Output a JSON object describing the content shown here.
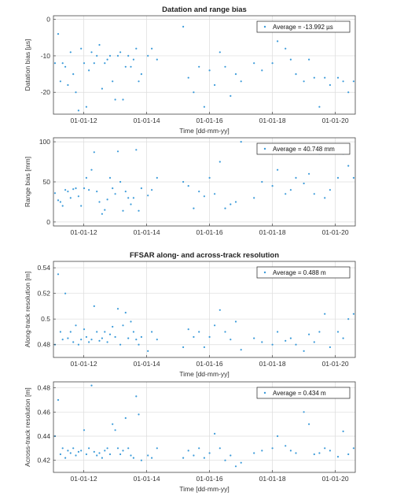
{
  "chart_data": [
    {
      "type": "scatter",
      "title": "Datation and range bias",
      "xlabel": "Time [dd-mm-yy]",
      "ylabel": "Datation bias [µs]",
      "xticks": [
        "01-01-12",
        "01-01-14",
        "01-01-16",
        "01-01-18",
        "01-01-20"
      ],
      "yticks": [
        0,
        -10,
        -20
      ],
      "xlim": [
        "2011-01-14",
        "2020-08-20"
      ],
      "ylim": [
        -26,
        1
      ],
      "grid": true,
      "legend_position": "top-right",
      "color": "#3a9ad9",
      "series": [
        {
          "name": "Average = -13.992 µs",
          "x": [
            "2011-02-01",
            "2011-03-10",
            "2011-04-05",
            "2011-05-01",
            "2011-06-01",
            "2011-07-01",
            "2011-08-01",
            "2011-09-01",
            "2011-10-01",
            "2011-11-01",
            "2011-12-01",
            "2012-01-05",
            "2012-02-01",
            "2012-03-01",
            "2012-04-01",
            "2012-05-01",
            "2012-06-01",
            "2012-07-01",
            "2012-08-01",
            "2012-09-01",
            "2012-10-01",
            "2012-11-01",
            "2012-12-01",
            "2013-01-01",
            "2013-02-01",
            "2013-03-01",
            "2013-04-01",
            "2013-05-01",
            "2013-06-01",
            "2013-07-01",
            "2013-08-01",
            "2013-09-01",
            "2013-10-01",
            "2013-11-01",
            "2014-01-15",
            "2014-03-01",
            "2014-05-01",
            "2015-03-01",
            "2015-05-01",
            "2015-07-01",
            "2015-09-01",
            "2015-11-01",
            "2016-01-01",
            "2016-03-01",
            "2016-05-01",
            "2016-07-01",
            "2016-09-01",
            "2016-11-01",
            "2017-01-01",
            "2017-06-01",
            "2017-09-01",
            "2018-01-01",
            "2018-03-01",
            "2018-06-01",
            "2018-08-01",
            "2018-10-01",
            "2019-01-01",
            "2019-03-01",
            "2019-05-01",
            "2019-07-01",
            "2019-09-01",
            "2019-11-01",
            "2020-02-01",
            "2020-04-01",
            "2020-06-01",
            "2020-08-01"
          ],
          "y": [
            -12,
            -4,
            -17,
            -12,
            -13,
            -18,
            -9,
            -15,
            -20,
            -25,
            -8,
            -12,
            -24,
            -14,
            -9,
            -12,
            -10,
            -7,
            -19,
            -12,
            -11,
            -10,
            -17,
            -22,
            -10,
            -9,
            -22,
            -13,
            -10,
            -13,
            -11,
            -8,
            -17,
            -15,
            -10,
            -8,
            -11,
            -2,
            -16,
            -20,
            -13,
            -24,
            -14,
            -18,
            -9,
            -13,
            -21,
            -15,
            -17,
            -12,
            -14,
            -12,
            -6,
            -8,
            -11,
            -15,
            -17,
            -11,
            -16,
            -24,
            -16,
            -18,
            -16,
            -17,
            -20,
            -17
          ]
        }
      ]
    },
    {
      "type": "scatter",
      "title": "",
      "xlabel": "",
      "ylabel": "Range bias [mm]",
      "xticks": [
        "01-01-12",
        "01-01-14",
        "01-01-16",
        "01-01-18",
        "01-01-20"
      ],
      "yticks": [
        100,
        50,
        0
      ],
      "xlim": [
        "2011-01-14",
        "2020-08-20"
      ],
      "ylim": [
        -5,
        105
      ],
      "grid": true,
      "legend_position": "top-right",
      "color": "#3a9ad9",
      "series": [
        {
          "name": "Average = 40.748 mm",
          "x": [
            "2011-02-01",
            "2011-03-10",
            "2011-04-05",
            "2011-05-01",
            "2011-06-01",
            "2011-07-01",
            "2011-08-01",
            "2011-09-01",
            "2011-10-01",
            "2011-11-01",
            "2011-12-01",
            "2012-01-05",
            "2012-02-01",
            "2012-03-01",
            "2012-04-01",
            "2012-05-01",
            "2012-06-01",
            "2012-07-01",
            "2012-08-01",
            "2012-09-01",
            "2012-10-01",
            "2012-11-01",
            "2012-12-01",
            "2013-01-01",
            "2013-02-01",
            "2013-03-01",
            "2013-04-01",
            "2013-05-01",
            "2013-06-01",
            "2013-07-01",
            "2013-08-01",
            "2013-09-01",
            "2013-10-01",
            "2013-11-01",
            "2014-01-15",
            "2014-03-01",
            "2014-05-01",
            "2015-03-01",
            "2015-05-01",
            "2015-07-01",
            "2015-09-01",
            "2015-11-01",
            "2016-01-01",
            "2016-03-01",
            "2016-05-01",
            "2016-07-01",
            "2016-09-01",
            "2016-11-01",
            "2017-01-01",
            "2017-06-01",
            "2017-09-01",
            "2018-01-01",
            "2018-03-01",
            "2018-06-01",
            "2018-08-01",
            "2018-10-01",
            "2019-01-01",
            "2019-03-01",
            "2019-05-01",
            "2019-07-01",
            "2019-09-01",
            "2019-11-01",
            "2020-02-01",
            "2020-04-01",
            "2020-06-01",
            "2020-08-01"
          ],
          "y": [
            36,
            27,
            25,
            20,
            40,
            38,
            30,
            41,
            42,
            32,
            20,
            42,
            55,
            40,
            65,
            87,
            38,
            25,
            10,
            15,
            28,
            55,
            42,
            35,
            88,
            50,
            14,
            38,
            30,
            22,
            30,
            90,
            14,
            42,
            33,
            40,
            55,
            50,
            45,
            17,
            38,
            32,
            55,
            35,
            75,
            17,
            22,
            25,
            100,
            30,
            50,
            45,
            65,
            35,
            40,
            55,
            48,
            60,
            35,
            85,
            30,
            40,
            55,
            85,
            70,
            55
          ]
        }
      ]
    },
    {
      "type": "scatter",
      "title": "FFSAR along- and across-track resolution",
      "xlabel": "Time [dd-mm-yy]",
      "ylabel": "Along-track resolution [m]",
      "xticks": [
        "01-01-12",
        "01-01-14",
        "01-01-16",
        "01-01-18",
        "01-01-20"
      ],
      "yticks": [
        0.54,
        0.52,
        0.5,
        0.48
      ],
      "xlim": [
        "2011-01-14",
        "2020-08-20"
      ],
      "ylim": [
        0.47,
        0.545
      ],
      "grid": true,
      "legend_position": "top-right",
      "color": "#3a9ad9",
      "series": [
        {
          "name": "Average = 0.488 m",
          "x": [
            "2011-02-01",
            "2011-03-10",
            "2011-04-05",
            "2011-05-01",
            "2011-06-01",
            "2011-07-01",
            "2011-08-01",
            "2011-09-01",
            "2011-10-01",
            "2011-11-01",
            "2011-12-01",
            "2012-01-05",
            "2012-02-01",
            "2012-03-01",
            "2012-04-01",
            "2012-05-01",
            "2012-06-01",
            "2012-07-01",
            "2012-08-01",
            "2012-09-01",
            "2012-10-01",
            "2012-11-01",
            "2012-12-01",
            "2013-01-01",
            "2013-02-01",
            "2013-03-01",
            "2013-04-01",
            "2013-05-01",
            "2013-06-01",
            "2013-07-01",
            "2013-08-01",
            "2013-09-01",
            "2013-10-01",
            "2013-11-01",
            "2014-01-15",
            "2014-03-01",
            "2014-05-01",
            "2015-03-01",
            "2015-05-01",
            "2015-07-01",
            "2015-09-01",
            "2015-11-01",
            "2016-01-01",
            "2016-03-01",
            "2016-05-01",
            "2016-07-01",
            "2016-09-01",
            "2016-11-01",
            "2017-01-01",
            "2017-06-01",
            "2017-09-01",
            "2018-01-01",
            "2018-03-01",
            "2018-06-01",
            "2018-08-01",
            "2018-10-01",
            "2019-01-01",
            "2019-03-01",
            "2019-05-01",
            "2019-07-01",
            "2019-09-01",
            "2019-11-01",
            "2020-02-01",
            "2020-04-01",
            "2020-06-01",
            "2020-08-01"
          ],
          "y": [
            0.48,
            0.535,
            0.49,
            0.484,
            0.52,
            0.485,
            0.49,
            0.482,
            0.495,
            0.48,
            0.484,
            0.492,
            0.486,
            0.482,
            0.484,
            0.51,
            0.49,
            0.483,
            0.485,
            0.49,
            0.482,
            0.488,
            0.494,
            0.486,
            0.508,
            0.48,
            0.495,
            0.505,
            0.485,
            0.498,
            0.49,
            0.484,
            0.48,
            0.486,
            0.475,
            0.49,
            0.484,
            0.478,
            0.492,
            0.486,
            0.49,
            0.478,
            0.486,
            0.495,
            0.507,
            0.49,
            0.484,
            0.498,
            0.476,
            0.485,
            0.482,
            0.48,
            0.49,
            0.483,
            0.485,
            0.48,
            0.475,
            0.488,
            0.482,
            0.49,
            0.504,
            0.478,
            0.49,
            0.485,
            0.5,
            0.504
          ]
        }
      ]
    },
    {
      "type": "scatter",
      "title": "",
      "xlabel": "Time [dd-mm-yy]",
      "ylabel": "Across-track resolution [m]",
      "xticks": [
        "01-01-12",
        "01-01-14",
        "01-01-16",
        "01-01-18",
        "01-01-20"
      ],
      "yticks": [
        0.48,
        0.46,
        0.44,
        0.42
      ],
      "xlim": [
        "2011-01-14",
        "2020-08-20"
      ],
      "ylim": [
        0.41,
        0.485
      ],
      "grid": true,
      "legend_position": "top-right",
      "color": "#3a9ad9",
      "series": [
        {
          "name": "Average = 0.434 m",
          "x": [
            "2011-02-01",
            "2011-03-10",
            "2011-04-05",
            "2011-05-01",
            "2011-06-01",
            "2011-07-01",
            "2011-08-01",
            "2011-09-01",
            "2011-10-01",
            "2011-11-01",
            "2011-12-01",
            "2012-01-05",
            "2012-02-01",
            "2012-03-01",
            "2012-04-01",
            "2012-05-01",
            "2012-06-01",
            "2012-07-01",
            "2012-08-01",
            "2012-09-01",
            "2012-10-01",
            "2012-11-01",
            "2012-12-01",
            "2013-01-01",
            "2013-02-01",
            "2013-03-01",
            "2013-04-01",
            "2013-05-01",
            "2013-06-01",
            "2013-07-01",
            "2013-08-01",
            "2013-09-01",
            "2013-10-01",
            "2013-11-01",
            "2014-01-15",
            "2014-03-01",
            "2014-05-01",
            "2015-03-01",
            "2015-05-01",
            "2015-07-01",
            "2015-09-01",
            "2015-11-01",
            "2016-01-01",
            "2016-03-01",
            "2016-05-01",
            "2016-07-01",
            "2016-09-01",
            "2016-11-01",
            "2017-01-01",
            "2017-06-01",
            "2017-09-01",
            "2018-01-01",
            "2018-03-01",
            "2018-06-01",
            "2018-08-01",
            "2018-10-01",
            "2019-01-01",
            "2019-03-01",
            "2019-05-01",
            "2019-07-01",
            "2019-09-01",
            "2019-11-01",
            "2020-02-01",
            "2020-04-01",
            "2020-06-01",
            "2020-08-01"
          ],
          "y": [
            0.44,
            0.47,
            0.425,
            0.43,
            0.422,
            0.428,
            0.426,
            0.43,
            0.424,
            0.427,
            0.428,
            0.445,
            0.425,
            0.43,
            0.482,
            0.427,
            0.424,
            0.426,
            0.422,
            0.428,
            0.43,
            0.425,
            0.45,
            0.445,
            0.43,
            0.425,
            0.428,
            0.455,
            0.43,
            0.424,
            0.422,
            0.473,
            0.458,
            0.42,
            0.424,
            0.422,
            0.43,
            0.422,
            0.428,
            0.424,
            0.43,
            0.422,
            0.426,
            0.442,
            0.43,
            0.42,
            0.424,
            0.415,
            0.418,
            0.426,
            0.428,
            0.43,
            0.44,
            0.432,
            0.428,
            0.426,
            0.46,
            0.45,
            0.425,
            0.426,
            0.43,
            0.428,
            0.423,
            0.444,
            0.425,
            0.43
          ]
        }
      ]
    }
  ]
}
